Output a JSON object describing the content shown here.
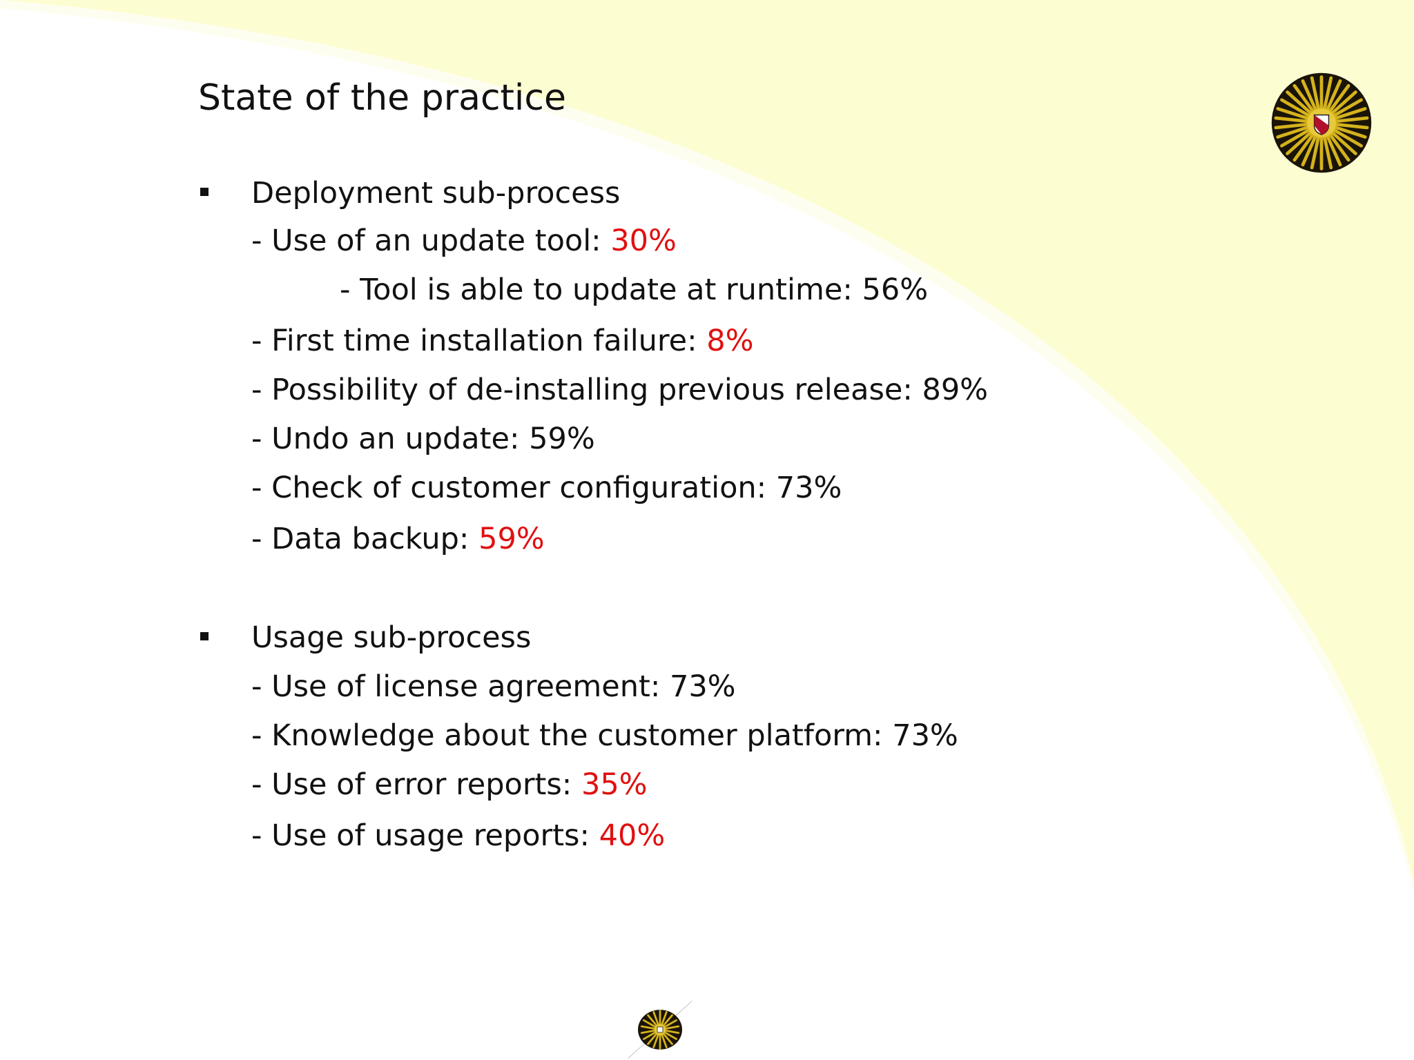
{
  "title": "State of the practice",
  "sections": [
    {
      "heading": "Deployment sub-process",
      "items": [
        {
          "label": "- Use of an update tool: ",
          "value": "30%",
          "highlight": true
        },
        {
          "label": "- Tool is able to update at runtime: ",
          "value": "56%",
          "highlight": false
        },
        {
          "label": "- First time installation failure: ",
          "value": "8%",
          "highlight": true
        },
        {
          "label": "- Possibility of de-installing previous release: ",
          "value": "89%",
          "highlight": false
        },
        {
          "label": "- Undo an update: ",
          "value": "59%",
          "highlight": false
        },
        {
          "label": "- Check of customer configuration: ",
          "value": "73%",
          "highlight": false
        },
        {
          "label": "- Data backup: ",
          "value": "59%",
          "highlight": true
        }
      ]
    },
    {
      "heading": "Usage sub-process",
      "items": [
        {
          "label": "- Use of license agreement: ",
          "value": "73%",
          "highlight": false
        },
        {
          "label": "- Knowledge about the customer platform: ",
          "value": "73%",
          "highlight": false
        },
        {
          "label": "- Use of error reports: ",
          "value": "35%",
          "highlight": true
        },
        {
          "label": "- Use of usage reports: ",
          "value": "40%",
          "highlight": true
        }
      ]
    }
  ],
  "colors": {
    "highlight": "#e01010",
    "text": "#111111",
    "background_arc": "#fdfdd2",
    "logo_gold": "#d4b21c"
  },
  "icons": {
    "top_logo": "university-sun-seal-icon",
    "bottom_logo": "university-sun-seal-icon"
  }
}
